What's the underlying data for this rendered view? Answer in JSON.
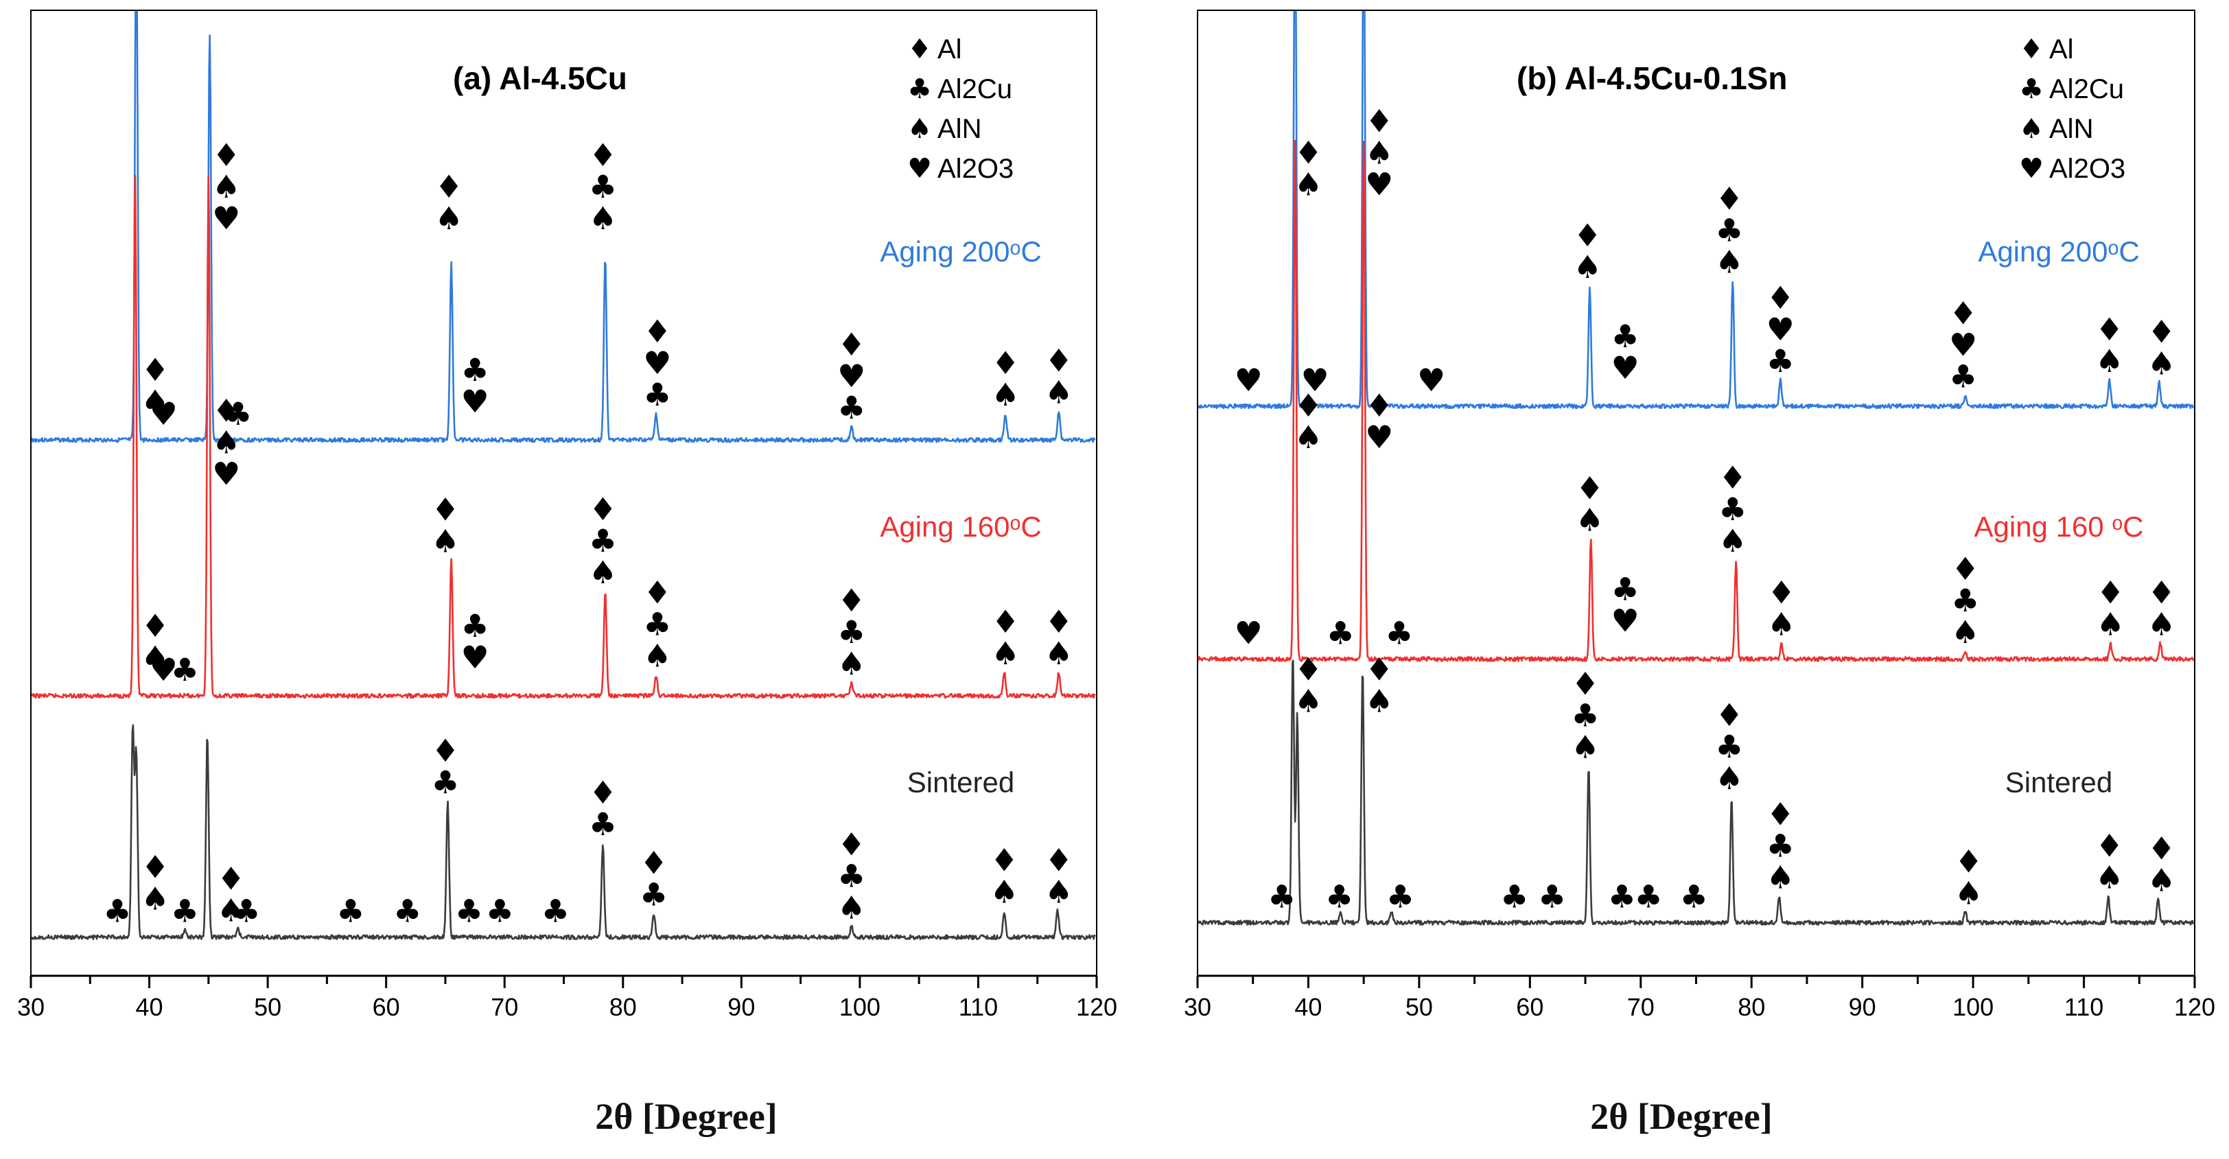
{
  "colors": {
    "aging200": "#2f7bdc",
    "aging160": "#f03030",
    "sintered": "#3c3c3c",
    "axis": "#000000"
  },
  "figure": {
    "xlabel": "2θ [Degree]"
  },
  "phase_symbols": {
    "Al": "♦",
    "Al2Cu": "♣",
    "AlN": "♠",
    "Al2O3": "♥"
  },
  "chart_data": [
    {
      "type": "line",
      "title": "(a) Al-4.5Cu",
      "xlabel": "2θ [Degree]",
      "ylabel": "",
      "xlim": [
        30,
        120
      ],
      "xticks": [
        "30",
        "40",
        "50",
        "60",
        "70",
        "80",
        "90",
        "100",
        "110",
        "120"
      ],
      "legend": [
        {
          "symbol": "♦",
          "label": "Al"
        },
        {
          "symbol": "♣",
          "label": "Al2Cu"
        },
        {
          "symbol": "♠",
          "label": "AlN"
        },
        {
          "symbol": "♥",
          "label": "Al2O3"
        }
      ],
      "series": [
        {
          "name": "Aging 200°C",
          "label": "Aging 200ᵒC",
          "color_key": "aging200",
          "baseline": 0.445,
          "peaks": [
            {
              "x": 38.9,
              "h": 1.0
            },
            {
              "x": 45.1,
              "h": 0.78
            },
            {
              "x": 65.5,
              "h": 0.34
            },
            {
              "x": 78.5,
              "h": 0.35
            },
            {
              "x": 82.8,
              "h": 0.05
            },
            {
              "x": 99.3,
              "h": 0.025
            },
            {
              "x": 112.3,
              "h": 0.05
            },
            {
              "x": 116.8,
              "h": 0.055
            }
          ],
          "annotations": [
            {
              "x": 40.5,
              "syms": [
                "♦",
                "♠"
              ]
            },
            {
              "x": 46.5,
              "syms": [
                "♦",
                "♠",
                "♥"
              ]
            },
            {
              "x": 41.2,
              "syms": [
                "♥"
              ]
            },
            {
              "x": 47.5,
              "syms": [
                "♣"
              ]
            },
            {
              "x": 65.3,
              "syms": [
                "♦",
                "♠"
              ]
            },
            {
              "x": 67.5,
              "syms": [
                "♣",
                "♥"
              ]
            },
            {
              "x": 78.3,
              "syms": [
                "♦",
                "♣",
                "♠"
              ]
            },
            {
              "x": 82.9,
              "syms": [
                "♦",
                "♥",
                "♣"
              ]
            },
            {
              "x": 99.3,
              "syms": [
                "♦",
                "♥",
                "♣"
              ]
            },
            {
              "x": 112.3,
              "syms": [
                "♦",
                "♠"
              ]
            },
            {
              "x": 116.8,
              "syms": [
                "♦",
                "♠"
              ]
            }
          ]
        },
        {
          "name": "Aging 160°C",
          "label": "Aging 160ᵒC",
          "color_key": "aging160",
          "baseline": 0.71,
          "peaks": [
            {
              "x": 38.8,
              "h": 1.0
            },
            {
              "x": 45.0,
              "h": 1.0
            },
            {
              "x": 65.5,
              "h": 0.26
            },
            {
              "x": 78.5,
              "h": 0.2
            },
            {
              "x": 82.8,
              "h": 0.04
            },
            {
              "x": 99.3,
              "h": 0.025
            },
            {
              "x": 112.2,
              "h": 0.045
            },
            {
              "x": 116.8,
              "h": 0.045
            }
          ],
          "annotations": [
            {
              "x": 40.5,
              "syms": [
                "♦",
                "♠"
              ]
            },
            {
              "x": 46.5,
              "syms": [
                "♦",
                "♠",
                "♥"
              ]
            },
            {
              "x": 41.2,
              "syms": [
                "♥"
              ]
            },
            {
              "x": 43.0,
              "syms": [
                "♣"
              ]
            },
            {
              "x": 65.0,
              "syms": [
                "♦",
                "♠"
              ]
            },
            {
              "x": 67.5,
              "syms": [
                "♣",
                "♥"
              ]
            },
            {
              "x": 78.3,
              "syms": [
                "♦",
                "♣",
                "♠"
              ]
            },
            {
              "x": 82.9,
              "syms": [
                "♦",
                "♣",
                "♠"
              ]
            },
            {
              "x": 99.3,
              "syms": [
                "♦",
                "♣",
                "♠"
              ]
            },
            {
              "x": 112.3,
              "syms": [
                "♦",
                "♠"
              ]
            },
            {
              "x": 116.8,
              "syms": [
                "♦",
                "♠"
              ]
            }
          ]
        },
        {
          "name": "Sintered",
          "label": "Sintered",
          "color_key": "sintered",
          "baseline": 0.96,
          "peaks": [
            {
              "x": 38.6,
              "h": 0.4
            },
            {
              "x": 38.9,
              "h": 0.35
            },
            {
              "x": 43.0,
              "h": 0.015
            },
            {
              "x": 44.9,
              "h": 0.39
            },
            {
              "x": 47.5,
              "h": 0.015
            },
            {
              "x": 65.2,
              "h": 0.26
            },
            {
              "x": 78.3,
              "h": 0.18
            },
            {
              "x": 82.6,
              "h": 0.045
            },
            {
              "x": 99.3,
              "h": 0.02
            },
            {
              "x": 112.2,
              "h": 0.05
            },
            {
              "x": 116.7,
              "h": 0.05
            }
          ],
          "annotations": [
            {
              "x": 40.5,
              "syms": [
                "♦",
                "♠"
              ]
            },
            {
              "x": 46.9,
              "syms": [
                "♦",
                "♠"
              ]
            },
            {
              "x": 37.3,
              "syms": [
                "♣"
              ]
            },
            {
              "x": 43.0,
              "syms": [
                "♣"
              ]
            },
            {
              "x": 48.2,
              "syms": [
                "♣"
              ]
            },
            {
              "x": 57.0,
              "syms": [
                "♣"
              ]
            },
            {
              "x": 61.8,
              "syms": [
                "♣"
              ]
            },
            {
              "x": 67.0,
              "syms": [
                "♣"
              ]
            },
            {
              "x": 69.6,
              "syms": [
                "♣"
              ]
            },
            {
              "x": 74.3,
              "syms": [
                "♣"
              ]
            },
            {
              "x": 65.0,
              "syms": [
                "♦",
                "♣"
              ]
            },
            {
              "x": 78.3,
              "syms": [
                "♦",
                "♣"
              ]
            },
            {
              "x": 82.6,
              "syms": [
                "♦",
                "♣"
              ]
            },
            {
              "x": 99.3,
              "syms": [
                "♦",
                "♣",
                "♠"
              ]
            },
            {
              "x": 112.2,
              "syms": [
                "♦",
                "♠"
              ]
            },
            {
              "x": 116.8,
              "syms": [
                "♦",
                "♠"
              ]
            }
          ]
        }
      ]
    },
    {
      "type": "line",
      "title": "(b) Al-4.5Cu-0.1Sn",
      "xlabel": "2θ [Degree]",
      "ylabel": "",
      "xlim": [
        30,
        120
      ],
      "xticks": [
        "30",
        "40",
        "50",
        "60",
        "70",
        "80",
        "90",
        "100",
        "110",
        "120"
      ],
      "legend": [
        {
          "symbol": "♦",
          "label": "Al"
        },
        {
          "symbol": "♣",
          "label": "Al2Cu"
        },
        {
          "symbol": "♠",
          "label": "AlN"
        },
        {
          "symbol": "♥",
          "label": "Al2O3"
        }
      ],
      "series": [
        {
          "name": "Aging 200°C",
          "label": "Aging 200ᵒC",
          "color_key": "aging200",
          "baseline": 0.41,
          "peaks": [
            {
              "x": 38.8,
              "h": 1.0
            },
            {
              "x": 45.0,
              "h": 1.0
            },
            {
              "x": 65.4,
              "h": 0.23
            },
            {
              "x": 78.3,
              "h": 0.24
            },
            {
              "x": 82.6,
              "h": 0.05
            },
            {
              "x": 99.3,
              "h": 0.02
            },
            {
              "x": 112.3,
              "h": 0.05
            },
            {
              "x": 116.8,
              "h": 0.045
            }
          ],
          "annotations": [
            {
              "x": 40.0,
              "syms": [
                "♦",
                "♠"
              ]
            },
            {
              "x": 46.4,
              "syms": [
                "♦",
                "♠",
                "♥"
              ]
            },
            {
              "x": 34.6,
              "syms": [
                "♥"
              ]
            },
            {
              "x": 40.6,
              "syms": [
                "♥"
              ]
            },
            {
              "x": 51.1,
              "syms": [
                "♥"
              ]
            },
            {
              "x": 65.2,
              "syms": [
                "♦",
                "♠"
              ]
            },
            {
              "x": 68.6,
              "syms": [
                "♣",
                "♥"
              ]
            },
            {
              "x": 78.0,
              "syms": [
                "♦",
                "♣",
                "♠"
              ]
            },
            {
              "x": 82.6,
              "syms": [
                "♦",
                "♥",
                "♣"
              ]
            },
            {
              "x": 99.1,
              "syms": [
                "♦",
                "♥",
                "♣"
              ]
            },
            {
              "x": 112.3,
              "syms": [
                "♦",
                "♠"
              ]
            },
            {
              "x": 117.0,
              "syms": [
                "♦",
                "♠"
              ]
            }
          ]
        },
        {
          "name": "Aging 160°C",
          "label": "Aging 160 ᵒC",
          "color_key": "aging160",
          "baseline": 0.672,
          "peaks": [
            {
              "x": 38.8,
              "h": 1.0
            },
            {
              "x": 45.0,
              "h": 1.0
            },
            {
              "x": 65.5,
              "h": 0.23
            },
            {
              "x": 78.6,
              "h": 0.19
            },
            {
              "x": 82.7,
              "h": 0.03
            },
            {
              "x": 99.3,
              "h": 0.015
            },
            {
              "x": 112.4,
              "h": 0.03
            },
            {
              "x": 116.9,
              "h": 0.03
            }
          ],
          "annotations": [
            {
              "x": 40.0,
              "syms": [
                "♦",
                "♠"
              ]
            },
            {
              "x": 46.4,
              "syms": [
                "♦",
                "♥"
              ]
            },
            {
              "x": 34.6,
              "syms": [
                "♥"
              ]
            },
            {
              "x": 42.9,
              "syms": [
                "♣"
              ]
            },
            {
              "x": 48.2,
              "syms": [
                "♣"
              ]
            },
            {
              "x": 65.4,
              "syms": [
                "♦",
                "♠"
              ]
            },
            {
              "x": 68.6,
              "syms": [
                "♣",
                "♥"
              ]
            },
            {
              "x": 78.3,
              "syms": [
                "♦",
                "♣",
                "♠"
              ]
            },
            {
              "x": 82.7,
              "syms": [
                "♦",
                "♠"
              ]
            },
            {
              "x": 99.3,
              "syms": [
                "♦",
                "♣",
                "♠"
              ]
            },
            {
              "x": 112.4,
              "syms": [
                "♦",
                "♠"
              ]
            },
            {
              "x": 117.0,
              "syms": [
                "♦",
                "♠"
              ]
            }
          ]
        },
        {
          "name": "Sintered",
          "label": "Sintered",
          "color_key": "sintered",
          "baseline": 0.945,
          "peaks": [
            {
              "x": 38.6,
              "h": 0.52
            },
            {
              "x": 39.0,
              "h": 0.4
            },
            {
              "x": 42.9,
              "h": 0.02
            },
            {
              "x": 44.9,
              "h": 0.49
            },
            {
              "x": 47.5,
              "h": 0.02
            },
            {
              "x": 65.3,
              "h": 0.3
            },
            {
              "x": 78.2,
              "h": 0.24
            },
            {
              "x": 82.5,
              "h": 0.05
            },
            {
              "x": 99.3,
              "h": 0.02
            },
            {
              "x": 112.2,
              "h": 0.05
            },
            {
              "x": 116.7,
              "h": 0.045
            }
          ],
          "annotations": [
            {
              "x": 40.0,
              "syms": [
                "♦",
                "♠"
              ]
            },
            {
              "x": 46.4,
              "syms": [
                "♦",
                "♠"
              ]
            },
            {
              "x": 37.6,
              "syms": [
                "♣"
              ]
            },
            {
              "x": 42.8,
              "syms": [
                "♣"
              ]
            },
            {
              "x": 48.3,
              "syms": [
                "♣"
              ]
            },
            {
              "x": 58.6,
              "syms": [
                "♣"
              ]
            },
            {
              "x": 62.0,
              "syms": [
                "♣"
              ]
            },
            {
              "x": 68.3,
              "syms": [
                "♣"
              ]
            },
            {
              "x": 70.7,
              "syms": [
                "♣"
              ]
            },
            {
              "x": 74.8,
              "syms": [
                "♣"
              ]
            },
            {
              "x": 65.0,
              "syms": [
                "♦",
                "♣",
                "♠"
              ]
            },
            {
              "x": 78.0,
              "syms": [
                "♦",
                "♣",
                "♠"
              ]
            },
            {
              "x": 82.6,
              "syms": [
                "♦",
                "♣",
                "♠"
              ]
            },
            {
              "x": 99.6,
              "syms": [
                "♦",
                "♠"
              ]
            },
            {
              "x": 112.3,
              "syms": [
                "♦",
                "♠"
              ]
            },
            {
              "x": 117.0,
              "syms": [
                "♦",
                "♠"
              ]
            }
          ]
        }
      ]
    }
  ]
}
